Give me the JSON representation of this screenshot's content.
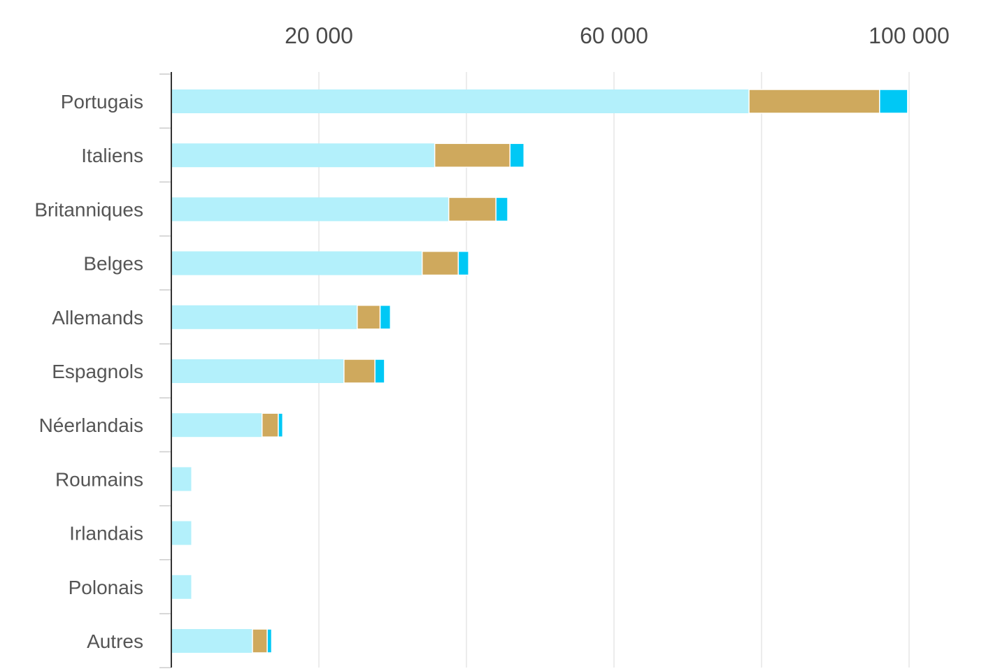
{
  "chart_data": {
    "type": "bar",
    "orientation": "horizontal",
    "stacked": true,
    "title": "",
    "xlabel": "",
    "ylabel": "",
    "xlim": [
      0,
      100000
    ],
    "x_ticks": [
      {
        "value": 20000,
        "label": "20 000"
      },
      {
        "value": 60000,
        "label": "60 000"
      },
      {
        "value": 100000,
        "label": "100 000"
      }
    ],
    "gridlines_at": [
      20000,
      40000,
      60000,
      80000,
      100000
    ],
    "grid": true,
    "legend": "none",
    "categories": [
      "Portugais",
      "Italiens",
      "Britanniques",
      "Belges",
      "Allemands",
      "Espagnols",
      "Néerlandais",
      "Roumains",
      "Irlandais",
      "Polonais",
      "Autres"
    ],
    "series": [
      {
        "color": "#b3f0fb",
        "values": [
          78300,
          35700,
          37600,
          34000,
          25200,
          23400,
          12300,
          2700,
          2700,
          2700,
          11000
        ]
      },
      {
        "color": "#cfa95d",
        "values": [
          17700,
          10200,
          6400,
          4900,
          3100,
          4200,
          2200,
          0,
          0,
          0,
          2000
        ]
      },
      {
        "color": "#00c8f5",
        "values": [
          3800,
          1900,
          1600,
          1400,
          1400,
          1300,
          600,
          0,
          0,
          0,
          600
        ]
      }
    ]
  }
}
